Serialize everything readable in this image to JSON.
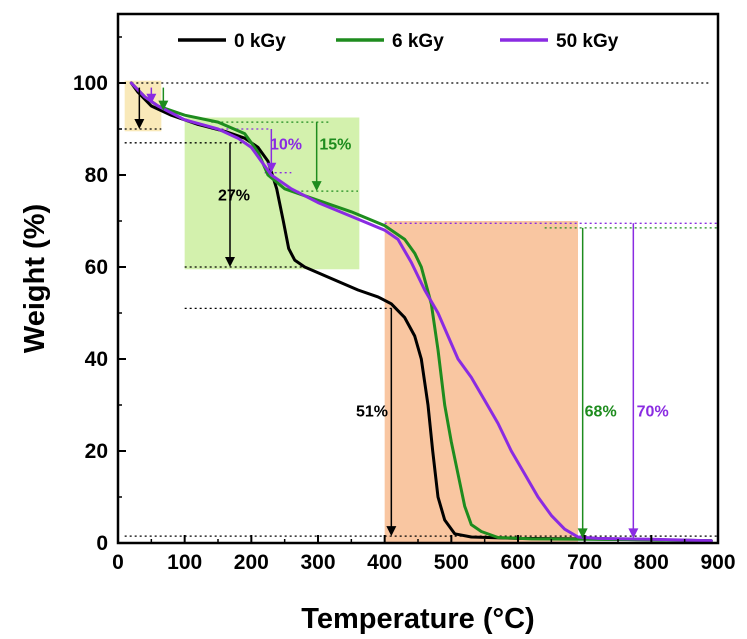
{
  "chart_data": {
    "type": "line",
    "title": "",
    "xlabel": "Temperature (°C)",
    "ylabel": "Weight (%)",
    "xlim": [
      0,
      900
    ],
    "ylim": [
      0,
      115
    ],
    "x_ticks": [
      0,
      100,
      200,
      300,
      400,
      500,
      600,
      700,
      800,
      900
    ],
    "y_ticks": [
      0,
      20,
      40,
      60,
      80,
      100
    ],
    "grid": false,
    "legend_position": "top",
    "series": [
      {
        "name": "0 kGy",
        "color": "#000000",
        "points": [
          [
            20,
            100
          ],
          [
            30,
            98
          ],
          [
            50,
            95
          ],
          [
            80,
            93
          ],
          [
            120,
            91
          ],
          [
            160,
            89.5
          ],
          [
            190,
            88
          ],
          [
            210,
            86
          ],
          [
            225,
            83
          ],
          [
            238,
            77
          ],
          [
            248,
            70
          ],
          [
            256,
            64
          ],
          [
            265,
            61.5
          ],
          [
            280,
            60
          ],
          [
            320,
            57.5
          ],
          [
            360,
            55
          ],
          [
            390,
            53.5
          ],
          [
            410,
            52
          ],
          [
            430,
            49
          ],
          [
            445,
            45
          ],
          [
            455,
            40
          ],
          [
            465,
            30
          ],
          [
            472,
            20
          ],
          [
            480,
            10
          ],
          [
            490,
            5
          ],
          [
            505,
            2
          ],
          [
            530,
            1.3
          ],
          [
            600,
            1
          ],
          [
            700,
            0.9
          ],
          [
            800,
            0.7
          ],
          [
            890,
            0.5
          ]
        ]
      },
      {
        "name": "6 kGy",
        "color": "#1e8c1e",
        "points": [
          [
            20,
            100
          ],
          [
            40,
            97
          ],
          [
            60,
            95
          ],
          [
            100,
            93
          ],
          [
            150,
            91.5
          ],
          [
            190,
            89
          ],
          [
            210,
            85
          ],
          [
            225,
            80
          ],
          [
            250,
            77
          ],
          [
            300,
            74.5
          ],
          [
            350,
            72
          ],
          [
            400,
            69
          ],
          [
            430,
            66
          ],
          [
            445,
            63
          ],
          [
            455,
            60
          ],
          [
            470,
            52
          ],
          [
            480,
            42
          ],
          [
            490,
            30
          ],
          [
            500,
            22
          ],
          [
            510,
            15
          ],
          [
            520,
            8
          ],
          [
            530,
            4
          ],
          [
            545,
            2.5
          ],
          [
            570,
            1.2
          ],
          [
            620,
            0.9
          ],
          [
            700,
            0.8
          ],
          [
            800,
            0.7
          ],
          [
            890,
            0.5
          ]
        ]
      },
      {
        "name": "50 kGy",
        "color": "#8a2be2",
        "points": [
          [
            20,
            100
          ],
          [
            40,
            97
          ],
          [
            60,
            95
          ],
          [
            100,
            92
          ],
          [
            150,
            90
          ],
          [
            180,
            88
          ],
          [
            200,
            86
          ],
          [
            215,
            83
          ],
          [
            230,
            80
          ],
          [
            260,
            77
          ],
          [
            300,
            74
          ],
          [
            350,
            71
          ],
          [
            400,
            68
          ],
          [
            420,
            66
          ],
          [
            440,
            61
          ],
          [
            460,
            55
          ],
          [
            480,
            50
          ],
          [
            495,
            45
          ],
          [
            510,
            40
          ],
          [
            530,
            36
          ],
          [
            550,
            31
          ],
          [
            570,
            26
          ],
          [
            590,
            20
          ],
          [
            610,
            15
          ],
          [
            630,
            10
          ],
          [
            650,
            6
          ],
          [
            670,
            3
          ],
          [
            690,
            1.3
          ],
          [
            720,
            1
          ],
          [
            800,
            0.8
          ],
          [
            890,
            0.5
          ]
        ]
      }
    ],
    "annotations": [
      {
        "text": "10%",
        "color": "#8a2be2",
        "x": 228,
        "y": 85.5
      },
      {
        "text": "15%",
        "color": "#1e8c1e",
        "x": 302,
        "y": 85.5
      },
      {
        "text": "27%",
        "color": "#000000",
        "x": 150,
        "y": 74.5
      },
      {
        "text": "51%",
        "color": "#000000",
        "x": 357,
        "y": 27.5
      },
      {
        "text": "68%",
        "color": "#1e8c1e",
        "x": 700,
        "y": 27.5
      },
      {
        "text": "70%",
        "color": "#8a2be2",
        "x": 778,
        "y": 27.5
      }
    ],
    "regions": [
      {
        "x0": 10,
        "x1": 65,
        "y0": 89.5,
        "y1": 100.5,
        "color": "#f8e4a8"
      },
      {
        "x0": 100,
        "x1": 362,
        "y0": 59.5,
        "y1": 92.5,
        "color": "#c8ee98"
      },
      {
        "x0": 400,
        "x1": 690,
        "y0": 0,
        "y1": 70,
        "color": "#f7b88a"
      }
    ],
    "reference_lines": [
      {
        "y": 100,
        "x0": 20,
        "x1": 890,
        "color": "#000000"
      },
      {
        "y": 90,
        "x0": 10,
        "x1": 65,
        "color": "#000000"
      },
      {
        "y": 87,
        "x0": 10,
        "x1": 200,
        "color": "#000000"
      },
      {
        "y": 91.5,
        "x0": 140,
        "x1": 320,
        "color": "#1e8c1e"
      },
      {
        "y": 90,
        "x0": 140,
        "x1": 230,
        "color": "#8a2be2"
      },
      {
        "y": 80.5,
        "x0": 220,
        "x1": 260,
        "color": "#8a2be2"
      },
      {
        "y": 76.5,
        "x0": 260,
        "x1": 360,
        "color": "#1e8c1e"
      },
      {
        "y": 60,
        "x0": 100,
        "x1": 280,
        "color": "#000000"
      },
      {
        "y": 51,
        "x0": 100,
        "x1": 420,
        "color": "#000000"
      },
      {
        "y": 69.5,
        "x0": 400,
        "x1": 900,
        "color": "#8a2be2"
      },
      {
        "y": 68.5,
        "x0": 640,
        "x1": 900,
        "color": "#1e8c1e"
      },
      {
        "y": 1.5,
        "x0": 10,
        "x1": 900,
        "color": "#000000"
      }
    ],
    "arrows": [
      {
        "x": 32,
        "y0": 99,
        "y1": 90,
        "color": "#000000"
      },
      {
        "x": 50,
        "y0": 99,
        "y1": 95.5,
        "color": "#8a2be2"
      },
      {
        "x": 68,
        "y0": 99,
        "y1": 94,
        "color": "#1e8c1e"
      },
      {
        "x": 168,
        "y0": 87,
        "y1": 60,
        "color": "#000000"
      },
      {
        "x": 230,
        "y0": 90,
        "y1": 80.5,
        "color": "#8a2be2"
      },
      {
        "x": 298,
        "y0": 91.5,
        "y1": 76.5,
        "color": "#1e8c1e"
      },
      {
        "x": 410,
        "y0": 51,
        "y1": 1.5,
        "color": "#000000"
      },
      {
        "x": 697,
        "y0": 68.5,
        "y1": 1,
        "color": "#1e8c1e"
      },
      {
        "x": 773,
        "y0": 69.5,
        "y1": 1,
        "color": "#8a2be2"
      }
    ]
  }
}
